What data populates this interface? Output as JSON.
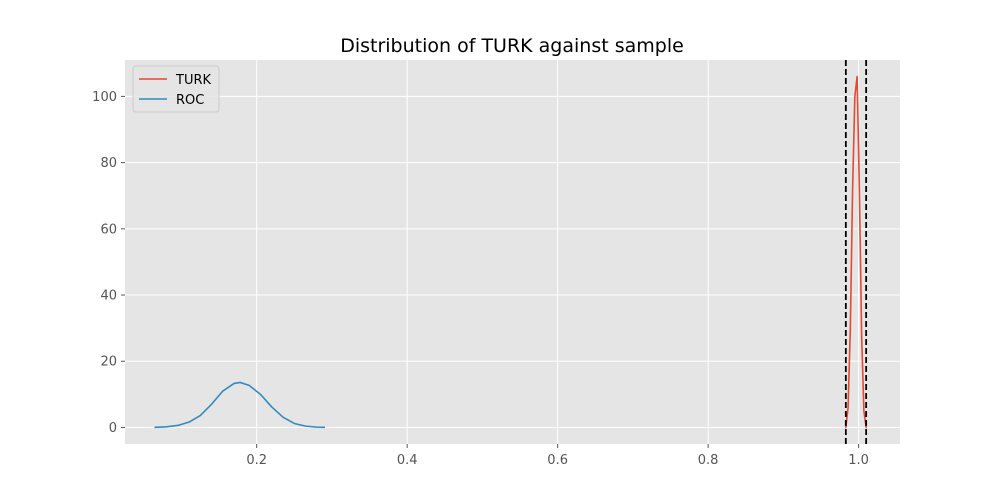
{
  "chart_data": {
    "type": "line",
    "title": "Distribution of TURK against sample",
    "xlabel": "",
    "ylabel": "",
    "xlim": [
      0.025,
      1.055
    ],
    "ylim": [
      -5,
      111
    ],
    "x_ticks": [
      0.2,
      0.4,
      0.6,
      0.8,
      1.0
    ],
    "x_tick_labels": [
      "0.2",
      "0.4",
      "0.6",
      "0.8",
      "1.0"
    ],
    "y_ticks": [
      0,
      20,
      40,
      60,
      80,
      100
    ],
    "y_tick_labels": [
      "0",
      "20",
      "40",
      "60",
      "80",
      "100"
    ],
    "grid": true,
    "legend_position": "top-left",
    "background_color": "#e5e5e5",
    "grid_color": "#ffffff",
    "series": [
      {
        "name": "TURK",
        "color": "#e24a33",
        "x": [
          0.983,
          0.986,
          0.989,
          0.992,
          0.995,
          0.998,
          1.001,
          1.004,
          1.007,
          1.01
        ],
        "values": [
          0,
          6,
          30,
          72,
          100,
          106,
          72,
          28,
          5,
          0
        ]
      },
      {
        "name": "ROC",
        "color": "#348abd",
        "x": [
          0.065,
          0.08,
          0.095,
          0.11,
          0.125,
          0.14,
          0.155,
          0.17,
          0.178,
          0.19,
          0.205,
          0.22,
          0.235,
          0.25,
          0.265,
          0.28,
          0.29
        ],
        "values": [
          0.05,
          0.2,
          0.6,
          1.6,
          3.6,
          7.0,
          11.0,
          13.3,
          13.6,
          12.7,
          10.0,
          6.2,
          3.1,
          1.2,
          0.4,
          0.1,
          0.03
        ]
      }
    ],
    "vlines": [
      {
        "x": 0.983,
        "color": "#000000",
        "style": "dashed"
      },
      {
        "x": 1.01,
        "color": "#000000",
        "style": "dashed"
      }
    ]
  }
}
